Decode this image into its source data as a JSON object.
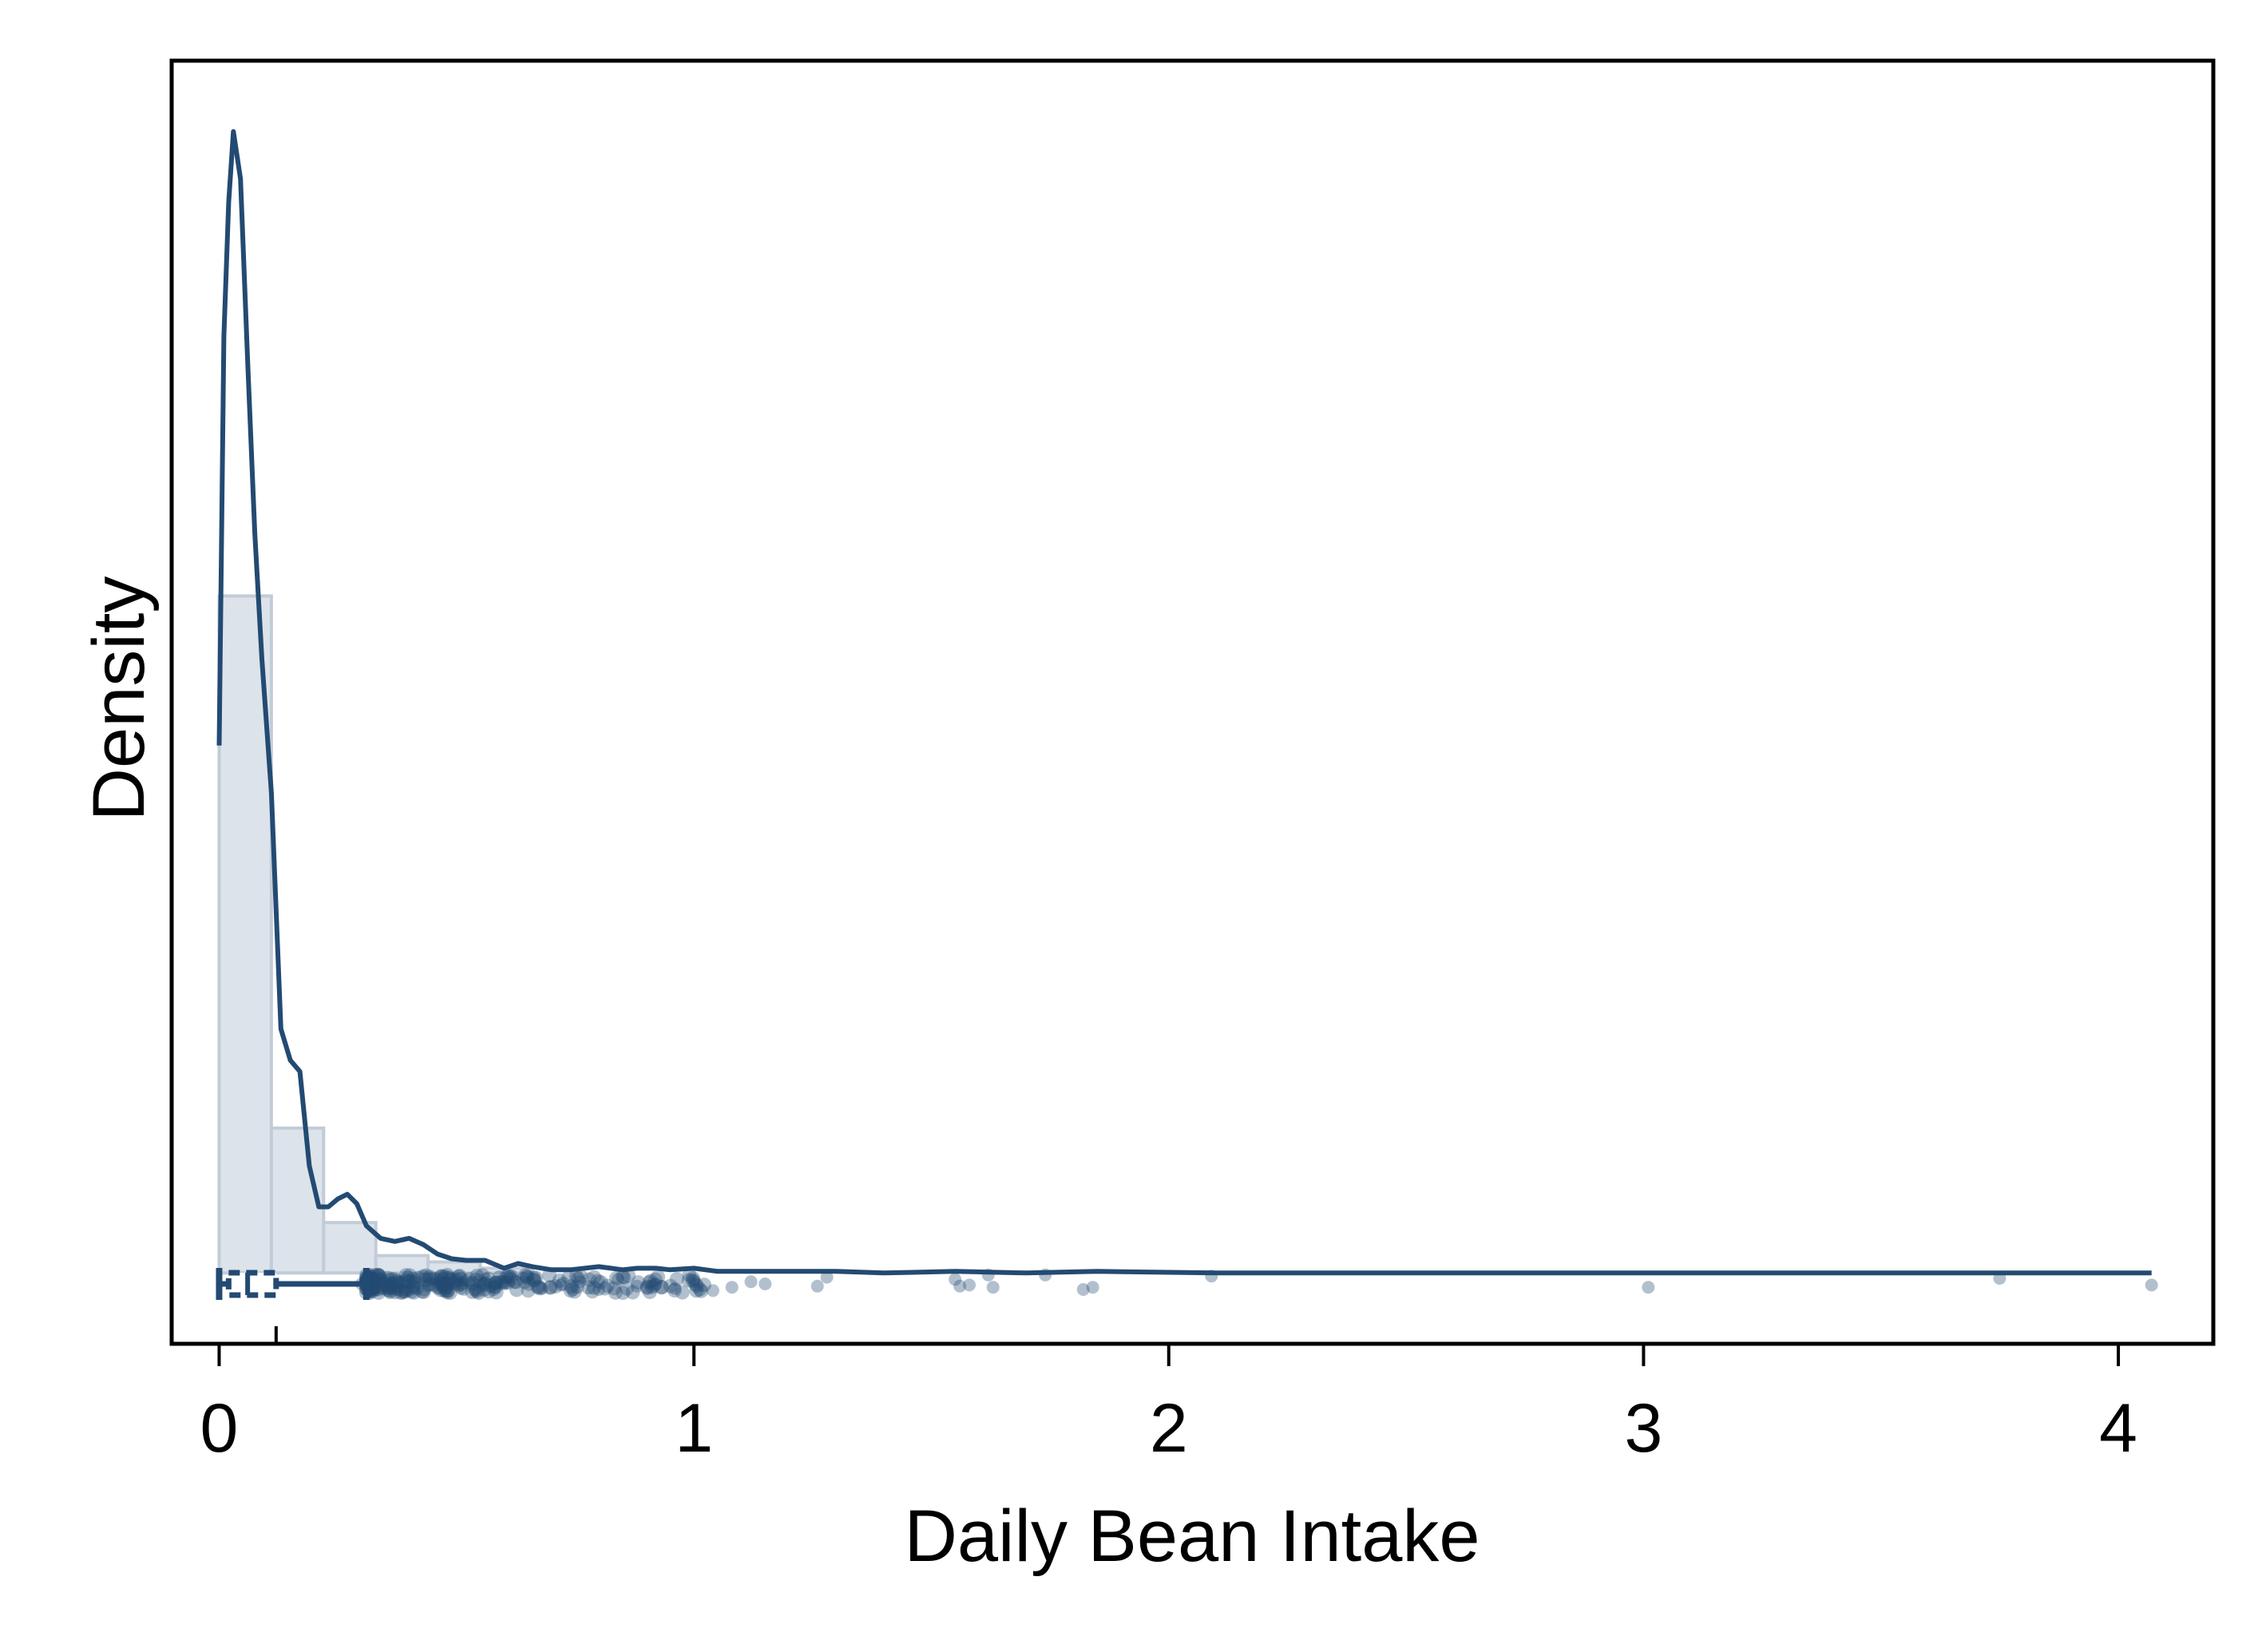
{
  "chart_data": {
    "type": "histogram",
    "xlabel": "Daily Bean Intake",
    "ylabel": "Density",
    "xlim": [
      -0.1,
      4.2
    ],
    "x_ticks": [
      0,
      1,
      2,
      3,
      4
    ],
    "x_tick_labels": [
      "0",
      "1",
      "2",
      "3",
      "4"
    ],
    "y_ticks_shown": false,
    "grid": false,
    "colors": {
      "bars_fill": "#dde3ea",
      "bars_edge": "#c2ccd8",
      "density_line": "#234a72",
      "points": "#234a72"
    },
    "histogram": {
      "bins": [
        {
          "x0": 0.0,
          "x1": 0.11,
          "density": 4.3
        },
        {
          "x0": 0.11,
          "x1": 0.22,
          "density": 0.92
        },
        {
          "x0": 0.22,
          "x1": 0.33,
          "density": 0.32
        },
        {
          "x0": 0.33,
          "x1": 0.44,
          "density": 0.11
        },
        {
          "x0": 0.44,
          "x1": 0.55,
          "density": 0.07
        },
        {
          "x0": 0.55,
          "x1": 0.66,
          "density": 0.03
        }
      ]
    },
    "density_curve": {
      "x": [
        0.0,
        0.01,
        0.02,
        0.03,
        0.045,
        0.06,
        0.075,
        0.09,
        0.11,
        0.13,
        0.15,
        0.17,
        0.19,
        0.21,
        0.23,
        0.25,
        0.27,
        0.29,
        0.31,
        0.34,
        0.37,
        0.4,
        0.43,
        0.46,
        0.49,
        0.52,
        0.56,
        0.6,
        0.63,
        0.66,
        0.7,
        0.74,
        0.8,
        0.85,
        0.88,
        0.92,
        0.95,
        1.0,
        1.05,
        1.1,
        1.2,
        1.3,
        1.4,
        1.55,
        1.7,
        1.85,
        2.1,
        2.5,
        3.0,
        3.5,
        3.75,
        4.07
      ],
      "y": [
        3.35,
        5.95,
        6.8,
        7.25,
        6.95,
        5.8,
        4.7,
        3.9,
        3.05,
        1.55,
        1.35,
        1.28,
        0.68,
        0.42,
        0.42,
        0.47,
        0.5,
        0.44,
        0.3,
        0.22,
        0.2,
        0.22,
        0.18,
        0.12,
        0.09,
        0.08,
        0.08,
        0.03,
        0.06,
        0.04,
        0.02,
        0.02,
        0.04,
        0.02,
        0.03,
        0.03,
        0.02,
        0.03,
        0.01,
        0.01,
        0.01,
        0.01,
        0.0,
        0.01,
        0.0,
        0.01,
        0.0,
        0.0,
        0.0,
        0.0,
        0.0,
        0.0
      ],
      "ylim": [
        -0.45,
        7.7
      ]
    },
    "boxplot": {
      "whisker_low": 0.0,
      "q1": 0.02,
      "median": 0.06,
      "q3": 0.12,
      "whisker_high": 0.31
    },
    "jitter_points": {
      "x": [
        0.3,
        0.32,
        0.34,
        0.36,
        0.38,
        0.4,
        0.42,
        0.44,
        0.46,
        0.48,
        0.5,
        0.52,
        0.54,
        0.56,
        0.58,
        0.6,
        0.64,
        0.68,
        0.72,
        0.76,
        0.8,
        0.84,
        0.88,
        0.92,
        0.96,
        1.0,
        1.04,
        1.08,
        1.12,
        1.15,
        1.26,
        1.28,
        1.55,
        1.56,
        1.58,
        1.62,
        1.63,
        1.74,
        1.82,
        1.84,
        2.09,
        3.01,
        3.75,
        4.07
      ],
      "jitter": [
        0.0,
        0.5,
        -0.5,
        0.3,
        -0.2,
        0.6,
        -0.6,
        0.2,
        -0.4,
        0.4,
        0.0,
        -0.3,
        0.5,
        -0.1,
        0.3,
        0.0,
        -0.5,
        0.4,
        0.1,
        -0.2,
        0.5,
        -0.4,
        0.2,
        0.0,
        0.4,
        -0.3,
        0.6,
        0.3,
        -0.2,
        0.0,
        0.2,
        -0.6,
        -0.4,
        0.2,
        0.1,
        -0.8,
        0.3,
        -0.8,
        0.5,
        0.3,
        -0.7,
        0.3,
        -0.5,
        0.1
      ]
    }
  }
}
